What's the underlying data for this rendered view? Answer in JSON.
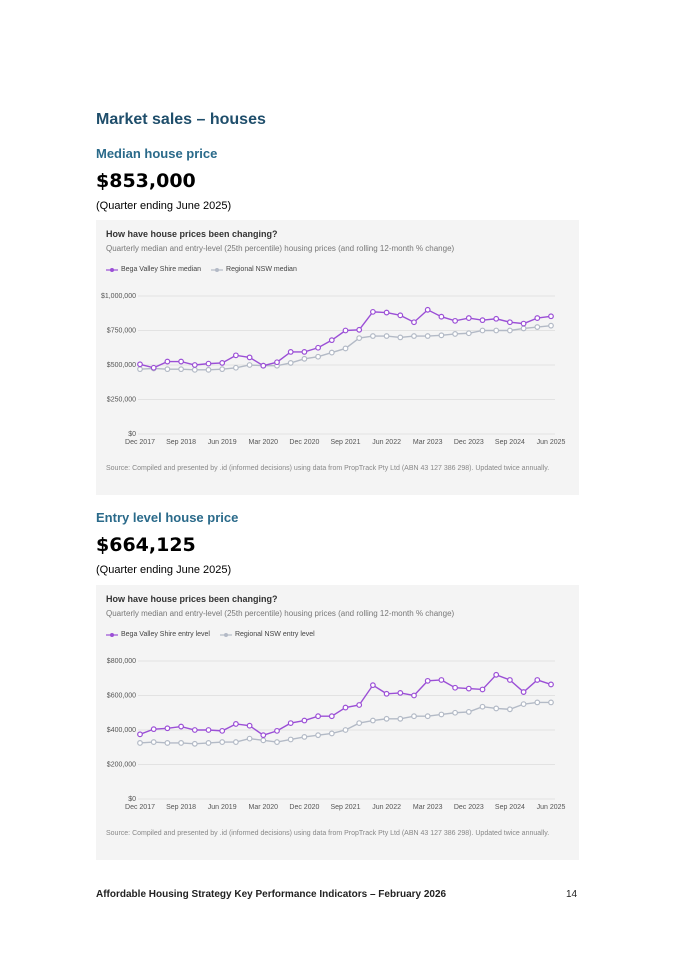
{
  "document": {
    "heading": "Market sales – houses",
    "sections": [
      {
        "subheading": "Median house price",
        "figure": "$853,000",
        "note": "(Quarter ending June 2025)"
      },
      {
        "subheading": "Entry level house price",
        "figure": "$664,125",
        "note": "(Quarter ending June 2025)"
      }
    ],
    "footer": {
      "text": "Affordable Housing Strategy Key Performance Indicators – February 2026",
      "page": "14"
    }
  },
  "chart_data": [
    {
      "type": "line",
      "title": "How have house prices been changing?",
      "subtitle": "Quarterly median and entry-level (25th percentile) housing prices (and rolling 12-month % change)",
      "source": "Source: Compiled and presented by .id (informed decisions) using data from PropTrack Pty Ltd (ABN 43 127 386 298). Updated twice annually.",
      "categories": [
        "Dec 2017",
        null,
        null,
        "Sep 2018",
        null,
        null,
        "Jun 2019",
        null,
        null,
        "Mar 2020",
        null,
        null,
        "Dec 2020",
        null,
        null,
        "Sep 2021",
        null,
        null,
        "Jun 2022",
        null,
        null,
        "Mar 2023",
        null,
        null,
        "Dec 2023",
        null,
        null,
        "Sep 2024",
        null,
        null,
        "Jun 2025"
      ],
      "series": [
        {
          "name": "Bega Valley Shire median",
          "color": "#9b4fd6",
          "values": [
            505000,
            480000,
            525000,
            525000,
            500000,
            510000,
            515000,
            570000,
            555000,
            495000,
            520000,
            595000,
            595000,
            625000,
            680000,
            750000,
            755000,
            885000,
            880000,
            860000,
            810000,
            900000,
            850000,
            820000,
            840000,
            825000,
            835000,
            810000,
            800000,
            840000,
            853000
          ]
        },
        {
          "name": "Regional NSW median",
          "color": "#b3bac6",
          "values": [
            470000,
            475000,
            470000,
            470000,
            465000,
            465000,
            470000,
            480000,
            500000,
            495000,
            495000,
            515000,
            545000,
            560000,
            590000,
            620000,
            695000,
            710000,
            710000,
            700000,
            710000,
            710000,
            715000,
            725000,
            730000,
            750000,
            750000,
            750000,
            765000,
            775000,
            785000
          ]
        }
      ],
      "ylim": [
        0,
        1000000
      ],
      "yticks": [
        {
          "value": 0,
          "label": "$0"
        },
        {
          "value": 250000,
          "label": "$250,000"
        },
        {
          "value": 500000,
          "label": "$500,000"
        },
        {
          "value": 750000,
          "label": "$750,000"
        },
        {
          "value": 1000000,
          "label": "$1,000,000"
        }
      ],
      "grid": true
    },
    {
      "type": "line",
      "title": "How have house prices been changing?",
      "subtitle": "Quarterly median and entry-level (25th percentile) housing prices (and rolling 12-month % change)",
      "source": "Source: Compiled and presented by .id (informed decisions) using data from PropTrack Pty Ltd (ABN 43 127 386 298). Updated twice annually.",
      "categories": [
        "Dec 2017",
        null,
        null,
        "Sep 2018",
        null,
        null,
        "Jun 2019",
        null,
        null,
        "Mar 2020",
        null,
        null,
        "Dec 2020",
        null,
        null,
        "Sep 2021",
        null,
        null,
        "Jun 2022",
        null,
        null,
        "Mar 2023",
        null,
        null,
        "Dec 2023",
        null,
        null,
        "Sep 2024",
        null,
        null,
        "Jun 2025"
      ],
      "series": [
        {
          "name": "Bega Valley Shire entry level",
          "color": "#9b4fd6",
          "values": [
            375000,
            405000,
            410000,
            420000,
            400000,
            400000,
            395000,
            435000,
            425000,
            370000,
            395000,
            440000,
            455000,
            480000,
            480000,
            530000,
            545000,
            660000,
            610000,
            615000,
            600000,
            685000,
            690000,
            645000,
            640000,
            635000,
            720000,
            690000,
            620000,
            690000,
            664125
          ]
        },
        {
          "name": "Regional NSW entry level",
          "color": "#b3bac6",
          "values": [
            325000,
            330000,
            325000,
            325000,
            320000,
            325000,
            330000,
            330000,
            350000,
            340000,
            330000,
            345000,
            360000,
            370000,
            380000,
            400000,
            440000,
            455000,
            465000,
            465000,
            480000,
            480000,
            490000,
            500000,
            505000,
            535000,
            525000,
            520000,
            550000,
            560000,
            560000
          ]
        }
      ],
      "ylim": [
        0,
        800000
      ],
      "yticks": [
        {
          "value": 0,
          "label": "$0"
        },
        {
          "value": 200000,
          "label": "$200,000"
        },
        {
          "value": 400000,
          "label": "$400,000"
        },
        {
          "value": 600000,
          "label": "$600,000"
        },
        {
          "value": 800000,
          "label": "$800,000"
        }
      ],
      "grid": true
    }
  ]
}
